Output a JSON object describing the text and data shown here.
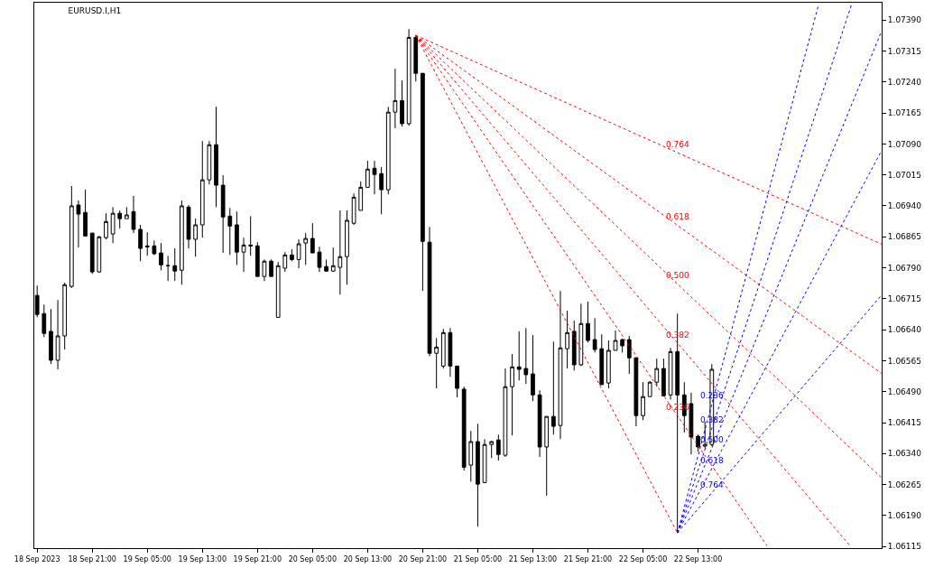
{
  "chart_data": {
    "type": "candlestick",
    "title": "EURUSD.I,H1",
    "color": "#000000",
    "x": [
      "2023-09-18T13:00",
      "2023-09-18T14:00",
      "2023-09-18T15:00",
      "2023-09-18T16:00",
      "2023-09-18T17:00",
      "2023-09-18T18:00",
      "2023-09-18T19:00",
      "2023-09-18T20:00",
      "2023-09-18T21:00",
      "2023-09-18T22:00",
      "2023-09-18T23:00",
      "2023-09-19T00:00",
      "2023-09-19T01:00",
      "2023-09-19T02:00",
      "2023-09-19T03:00",
      "2023-09-19T04:00",
      "2023-09-19T05:00",
      "2023-09-19T06:00",
      "2023-09-19T07:00",
      "2023-09-19T08:00",
      "2023-09-19T09:00",
      "2023-09-19T10:00",
      "2023-09-19T11:00",
      "2023-09-19T12:00",
      "2023-09-19T13:00",
      "2023-09-19T14:00",
      "2023-09-19T15:00",
      "2023-09-19T16:00",
      "2023-09-19T17:00",
      "2023-09-19T18:00",
      "2023-09-19T19:00",
      "2023-09-19T20:00",
      "2023-09-19T21:00",
      "2023-09-19T22:00",
      "2023-09-19T23:00",
      "2023-09-20T00:00",
      "2023-09-20T01:00",
      "2023-09-20T02:00",
      "2023-09-20T03:00",
      "2023-09-20T04:00",
      "2023-09-20T05:00",
      "2023-09-20T06:00",
      "2023-09-20T07:00",
      "2023-09-20T08:00",
      "2023-09-20T09:00",
      "2023-09-20T10:00",
      "2023-09-20T11:00",
      "2023-09-20T12:00",
      "2023-09-20T13:00",
      "2023-09-20T14:00",
      "2023-09-20T15:00",
      "2023-09-20T16:00",
      "2023-09-20T17:00",
      "2023-09-20T18:00",
      "2023-09-20T19:00",
      "2023-09-20T20:00",
      "2023-09-20T21:00",
      "2023-09-20T22:00",
      "2023-09-20T23:00",
      "2023-09-21T00:00",
      "2023-09-21T01:00",
      "2023-09-21T02:00",
      "2023-09-21T03:00",
      "2023-09-21T04:00",
      "2023-09-21T05:00",
      "2023-09-21T06:00",
      "2023-09-21T07:00",
      "2023-09-21T08:00",
      "2023-09-21T09:00",
      "2023-09-21T10:00",
      "2023-09-21T11:00",
      "2023-09-21T12:00",
      "2023-09-21T13:00",
      "2023-09-21T14:00",
      "2023-09-21T15:00",
      "2023-09-21T16:00",
      "2023-09-21T17:00",
      "2023-09-21T18:00",
      "2023-09-21T19:00",
      "2023-09-21T20:00",
      "2023-09-21T21:00",
      "2023-09-21T22:00",
      "2023-09-21T23:00",
      "2023-09-22T00:00",
      "2023-09-22T01:00",
      "2023-09-22T02:00",
      "2023-09-22T03:00",
      "2023-09-22T04:00",
      "2023-09-22T05:00",
      "2023-09-22T06:00",
      "2023-09-22T07:00",
      "2023-09-22T08:00",
      "2023-09-22T09:00",
      "2023-09-22T10:00",
      "2023-09-22T11:00",
      "2023-09-22T12:00",
      "2023-09-22T13:00",
      "2023-09-22T14:00",
      "2023-09-22T15:00"
    ],
    "ohlc": [
      [
        1.06723,
        1.06747,
        1.0667,
        1.06677
      ],
      [
        1.06679,
        1.06701,
        1.06622,
        1.06631
      ],
      [
        1.06636,
        1.0669,
        1.06557,
        1.06566
      ],
      [
        1.06566,
        1.06712,
        1.06544,
        1.06625
      ],
      [
        1.06625,
        1.06754,
        1.06592,
        1.06749
      ],
      [
        1.06745,
        1.06988,
        1.06741,
        1.0694
      ],
      [
        1.06942,
        1.06953,
        1.06839,
        1.0692
      ],
      [
        1.06924,
        1.06979,
        1.06867,
        1.06867
      ],
      [
        1.06874,
        1.06874,
        1.06775,
        1.0678
      ],
      [
        1.0678,
        1.06867,
        1.06778,
        1.06865
      ],
      [
        1.06863,
        1.06922,
        1.06859,
        1.06902
      ],
      [
        1.06872,
        1.06937,
        1.0685,
        1.06922
      ],
      [
        1.06922,
        1.06929,
        1.06885,
        1.06909
      ],
      [
        1.06909,
        1.06937,
        1.06909,
        1.06918
      ],
      [
        1.06926,
        1.06964,
        1.06874,
        1.06883
      ],
      [
        1.06883,
        1.06894,
        1.06806,
        1.06837
      ],
      [
        1.06843,
        1.06876,
        1.06819,
        1.06841
      ],
      [
        1.06843,
        1.06856,
        1.06821,
        1.06824
      ],
      [
        1.06826,
        1.0685,
        1.06784,
        1.06797
      ],
      [
        1.06795,
        1.06819,
        1.06758,
        1.06795
      ],
      [
        1.06795,
        1.06837,
        1.06758,
        1.06782
      ],
      [
        1.06784,
        1.06953,
        1.06749,
        1.0694
      ],
      [
        1.06937,
        1.06942,
        1.06837,
        1.06859
      ],
      [
        1.06859,
        1.06909,
        1.06817,
        1.06894
      ],
      [
        1.06894,
        1.07097,
        1.06863,
        1.07003
      ],
      [
        1.07003,
        1.07097,
        1.06992,
        1.07088
      ],
      [
        1.07088,
        1.0718,
        1.06937,
        1.0699
      ],
      [
        1.0699,
        1.07014,
        1.06826,
        1.06913
      ],
      [
        1.06915,
        1.06935,
        1.06821,
        1.06891
      ],
      [
        1.06894,
        1.06926,
        1.06797,
        1.06828
      ],
      [
        1.06828,
        1.06863,
        1.0678,
        1.06845
      ],
      [
        1.06845,
        1.06915,
        1.06819,
        1.06843
      ],
      [
        1.06843,
        1.06852,
        1.06769,
        1.06769
      ],
      [
        1.06769,
        1.0681,
        1.06758,
        1.06806
      ],
      [
        1.06806,
        1.0681,
        1.06769,
        1.06769
      ],
      [
        1.0667,
        1.06804,
        1.0667,
        1.06795
      ],
      [
        1.06789,
        1.06828,
        1.0678,
        1.06821
      ],
      [
        1.06821,
        1.06835,
        1.06806,
        1.0681
      ],
      [
        1.0681,
        1.06859,
        1.06789,
        1.06848
      ],
      [
        1.0685,
        1.06874,
        1.06797,
        1.06861
      ],
      [
        1.06861,
        1.06898,
        1.06826,
        1.06826
      ],
      [
        1.06828,
        1.06841,
        1.0678,
        1.06791
      ],
      [
        1.06793,
        1.0681,
        1.0678,
        1.06782
      ],
      [
        1.06782,
        1.06839,
        1.0678,
        1.06795
      ],
      [
        1.06791,
        1.06929,
        1.06725,
        1.06817
      ],
      [
        1.06817,
        1.06929,
        1.06749,
        1.06905
      ],
      [
        1.06898,
        1.0697,
        1.06894,
        1.06961
      ],
      [
        1.06929,
        1.06999,
        1.06929,
        1.06985
      ],
      [
        1.06985,
        1.07049,
        1.06985,
        1.07029
      ],
      [
        1.07031,
        1.07049,
        1.06968,
        1.07016
      ],
      [
        1.07018,
        1.07034,
        1.0692,
        1.06979
      ],
      [
        1.06979,
        1.0718,
        1.06968,
        1.07167
      ],
      [
        1.07167,
        1.07272,
        1.07128,
        1.07195
      ],
      [
        1.07195,
        1.07244,
        1.07132,
        1.07139
      ],
      [
        1.07139,
        1.07368,
        1.07134,
        1.07348
      ],
      [
        1.07348,
        1.07353,
        1.07241,
        1.07261
      ],
      [
        1.07261,
        1.07261,
        1.06734,
        1.06854
      ],
      [
        1.06852,
        1.06889,
        1.06576,
        1.06583
      ],
      [
        1.06583,
        1.0662,
        1.06498,
        1.06598
      ],
      [
        1.06552,
        1.06642,
        1.06546,
        1.06633
      ],
      [
        1.06633,
        1.06644,
        1.06526,
        1.06552
      ],
      [
        1.06552,
        1.06552,
        1.06476,
        1.06498
      ],
      [
        1.06496,
        1.06502,
        1.06299,
        1.06307
      ],
      [
        1.06312,
        1.06395,
        1.06272,
        1.06369
      ],
      [
        1.06369,
        1.06412,
        1.06163,
        1.06266
      ],
      [
        1.0627,
        1.06375,
        1.06268,
        1.06362
      ],
      [
        1.06362,
        1.06371,
        1.06329,
        1.06369
      ],
      [
        1.06373,
        1.06386,
        1.06323,
        1.06338
      ],
      [
        1.06336,
        1.06546,
        1.06332,
        1.06502
      ],
      [
        1.06502,
        1.06581,
        1.06384,
        1.0655
      ],
      [
        1.0655,
        1.06636,
        1.06517,
        1.06544
      ],
      [
        1.06546,
        1.06644,
        1.06509,
        1.06531
      ],
      [
        1.06533,
        1.06627,
        1.06467,
        1.06482
      ],
      [
        1.06482,
        1.06493,
        1.06332,
        1.06356
      ],
      [
        1.06356,
        1.0643,
        1.06238,
        1.0643
      ],
      [
        1.0643,
        1.06611,
        1.06386,
        1.06406
      ],
      [
        1.06408,
        1.06734,
        1.06375,
        1.06596
      ],
      [
        1.06594,
        1.06686,
        1.06546,
        1.06633
      ],
      [
        1.06636,
        1.06662,
        1.06541,
        1.06555
      ],
      [
        1.06555,
        1.06703,
        1.06552,
        1.06655
      ],
      [
        1.06655,
        1.06708,
        1.06609,
        1.06614
      ],
      [
        1.06616,
        1.06668,
        1.06585,
        1.06592
      ],
      [
        1.06594,
        1.06629,
        1.06507,
        1.06507
      ],
      [
        1.06511,
        1.06614,
        1.06498,
        1.0659
      ],
      [
        1.0659,
        1.06638,
        1.0659,
        1.06614
      ],
      [
        1.06616,
        1.06618,
        1.06585,
        1.06601
      ],
      [
        1.06616,
        1.06625,
        1.06533,
        1.06572
      ],
      [
        1.06572,
        1.06572,
        1.06406,
        1.06432
      ],
      [
        1.06432,
        1.06513,
        1.06421,
        1.06478
      ],
      [
        1.06478,
        1.06515,
        1.06478,
        1.06513
      ],
      [
        1.06513,
        1.0657,
        1.06502,
        1.06546
      ],
      [
        1.06546,
        1.0657,
        1.06478,
        1.0648
      ],
      [
        1.06482,
        1.06596,
        1.06471,
        1.06587
      ],
      [
        1.06587,
        1.06679,
        1.06148,
        1.06482
      ],
      [
        1.06482,
        1.06513,
        1.06391,
        1.06432
      ],
      [
        1.06461,
        1.06487,
        1.06338,
        1.0638
      ],
      [
        1.06382,
        1.06386,
        1.06345,
        1.06356
      ],
      [
        1.06358,
        1.06417,
        1.06353,
        1.06362
      ],
      [
        1.06362,
        1.06557,
        1.06358,
        1.06544
      ]
    ],
    "series": [
      {
        "type": "line",
        "color": "#ff0000",
        "line_style": "dotted",
        "x": [
          "2023-09-20T20:00",
          "2023-09-22T10:00"
        ],
        "values": [
          1.07353,
          1.06148
        ]
      },
      {
        "type": "line",
        "color": "#ff0000",
        "line_style": "dotted",
        "x": [
          "2023-09-20T20:00",
          "2023-09-22T10:00",
          "2023-09-22T23:00"
        ],
        "values": [
          1.07353,
          1.06432,
          1.06117
        ]
      },
      {
        "type": "line",
        "color": "#ff0000",
        "line_style": "dotted",
        "x": [
          "2023-09-20T20:00",
          "2023-09-22T10:00",
          "2023-09-23T11:00"
        ],
        "values": [
          1.07353,
          1.06608,
          1.06118
        ]
      },
      {
        "type": "line",
        "color": "#ff0000",
        "line_style": "dotted",
        "x": [
          "2023-09-20T20:00",
          "2023-09-22T10:00",
          "2023-09-23T15:40"
        ],
        "values": [
          1.07353,
          1.06751,
          1.06281
        ]
      },
      {
        "type": "line",
        "color": "#ff0000",
        "line_style": "dotted",
        "x": [
          "2023-09-20T20:00",
          "2023-09-22T10:00",
          "2023-09-23T15:40"
        ],
        "values": [
          1.07353,
          1.06893,
          1.06534
        ]
      },
      {
        "type": "line",
        "color": "#ff0000",
        "line_style": "dotted",
        "x": [
          "2023-09-20T20:00",
          "2023-09-22T10:00",
          "2023-09-23T15:40"
        ],
        "values": [
          1.07353,
          1.07069,
          1.06847
        ]
      },
      {
        "type": "line",
        "color": "#0000ff",
        "line_style": "dotted",
        "x": [
          "2023-09-22T10:00",
          "2023-09-22T15:00",
          "2023-09-23T06:30"
        ],
        "values": [
          1.06148,
          1.0646,
          1.07427
        ]
      },
      {
        "type": "line",
        "color": "#0000ff",
        "line_style": "dotted",
        "x": [
          "2023-09-22T10:00",
          "2023-09-22T15:00",
          "2023-09-23T11:18"
        ],
        "values": [
          1.06148,
          1.06401,
          1.07428
        ]
      },
      {
        "type": "line",
        "color": "#0000ff",
        "line_style": "dotted",
        "x": [
          "2023-09-22T10:00",
          "2023-09-22T15:00",
          "2023-09-23T15:40"
        ],
        "values": [
          1.06148,
          1.06353,
          1.07364
        ]
      },
      {
        "type": "line",
        "color": "#0000ff",
        "line_style": "dotted",
        "x": [
          "2023-09-22T10:00",
          "2023-09-22T15:00",
          "2023-09-23T15:40"
        ],
        "values": [
          1.06148,
          1.06304,
          1.07074
        ]
      },
      {
        "type": "line",
        "color": "#0000ff",
        "line_style": "dotted",
        "x": [
          "2023-09-22T10:00",
          "2023-09-22T15:00",
          "2023-09-23T15:40"
        ],
        "values": [
          1.06148,
          1.06245,
          1.06724
        ]
      }
    ],
    "annotations": [
      {
        "text": "0.236",
        "x": "2023-09-22T10:00",
        "y": 1.06432
      },
      {
        "text": "0.382",
        "x": "2023-09-22T10:00",
        "y": 1.06608
      },
      {
        "text": "0.500",
        "x": "2023-09-22T10:00",
        "y": 1.06751
      },
      {
        "text": "0.618",
        "x": "2023-09-22T10:00",
        "y": 1.06893
      },
      {
        "text": "0.764",
        "x": "2023-09-22T10:00",
        "y": 1.07069
      },
      {
        "text": "0.236",
        "x": "2023-09-22T15:00",
        "y": 1.0646
      },
      {
        "text": "0.382",
        "x": "2023-09-22T15:00",
        "y": 1.06401
      },
      {
        "text": "0.500",
        "x": "2023-09-22T15:00",
        "y": 1.06353
      },
      {
        "text": "0.618",
        "x": "2023-09-22T15:00",
        "y": 1.06304
      },
      {
        "text": "0.764",
        "x": "2023-09-22T15:00",
        "y": 1.06245
      }
    ],
    "xlim": [
      "2023-09-18T12:35",
      "2023-09-23T15:40"
    ],
    "xticks": [
      {
        "value": "2023-09-18T13:00",
        "label": "18 Sep 2023"
      },
      {
        "value": "2023-09-18T21:00",
        "label": "18 Sep 21:00"
      },
      {
        "value": "2023-09-19T05:00",
        "label": "19 Sep 05:00"
      },
      {
        "value": "2023-09-19T13:00",
        "label": "19 Sep 13:00"
      },
      {
        "value": "2023-09-19T21:00",
        "label": "19 Sep 21:00"
      },
      {
        "value": "2023-09-20T05:00",
        "label": "20 Sep 05:00"
      },
      {
        "value": "2023-09-20T13:00",
        "label": "20 Sep 13:00"
      },
      {
        "value": "2023-09-20T21:00",
        "label": "20 Sep 21:00"
      },
      {
        "value": "2023-09-21T05:00",
        "label": "21 Sep 05:00"
      },
      {
        "value": "2023-09-21T13:00",
        "label": "21 Sep 13:00"
      },
      {
        "value": "2023-09-21T21:00",
        "label": "21 Sep 21:00"
      },
      {
        "value": "2023-09-22T05:00",
        "label": "22 Sep 05:00"
      },
      {
        "value": "2023-09-22T13:00",
        "label": "22 Sep 13:00"
      }
    ],
    "ylim": [
      1.06111,
      1.07432
    ],
    "yticks": [
      {
        "value": 1.06115,
        "label": "1.06115"
      },
      {
        "value": 1.0619,
        "label": "1.06190"
      },
      {
        "value": 1.06265,
        "label": "1.06265"
      },
      {
        "value": 1.0634,
        "label": "1.06340"
      },
      {
        "value": 1.06415,
        "label": "1.06415"
      },
      {
        "value": 1.0649,
        "label": "1.06490"
      },
      {
        "value": 1.06565,
        "label": "1.06565"
      },
      {
        "value": 1.0664,
        "label": "1.06640"
      },
      {
        "value": 1.06715,
        "label": "1.06715"
      },
      {
        "value": 1.0679,
        "label": "1.06790"
      },
      {
        "value": 1.06865,
        "label": "1.06865"
      },
      {
        "value": 1.0694,
        "label": "1.06940"
      },
      {
        "value": 1.07015,
        "label": "1.07015"
      },
      {
        "value": 1.0709,
        "label": "1.07090"
      },
      {
        "value": 1.07165,
        "label": "1.07165"
      },
      {
        "value": 1.0724,
        "label": "1.07240"
      },
      {
        "value": 1.07315,
        "label": "1.07315"
      },
      {
        "value": 1.0739,
        "label": "1.07390"
      }
    ],
    "grid": false
  }
}
